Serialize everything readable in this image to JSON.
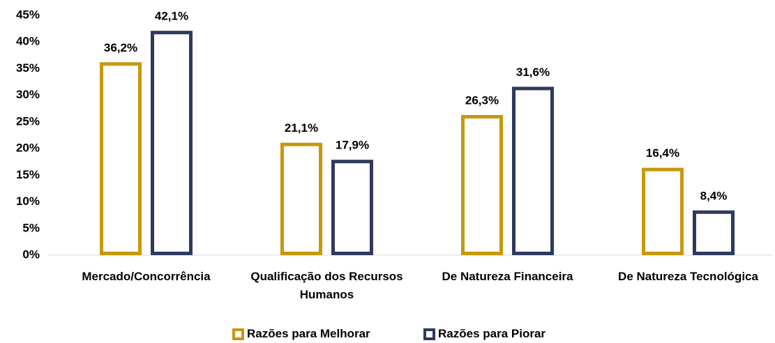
{
  "chart_data": {
    "type": "bar",
    "categories": [
      "Mercado/Concorrência",
      "Qualificação dos Recursos Humanos",
      "De Natureza Financeira",
      "De Natureza Tecnológica"
    ],
    "series": [
      {
        "name": "Razões para Melhorar",
        "color": "#c8980d",
        "values": [
          36.2,
          21.1,
          26.3,
          16.4
        ],
        "value_labels": [
          "36,2%",
          "21,1%",
          "26,3%",
          "16,4%"
        ]
      },
      {
        "name": "Razões para Piorar",
        "color": "#2e3a5e",
        "values": [
          42.1,
          17.9,
          31.6,
          8.4
        ],
        "value_labels": [
          "42,1%",
          "17,9%",
          "31,6%",
          "8,4%"
        ]
      }
    ],
    "ylim": [
      0,
      45
    ],
    "yticks": [
      {
        "value": 0,
        "label": "0%"
      },
      {
        "value": 5,
        "label": "5%"
      },
      {
        "value": 10,
        "label": "10%"
      },
      {
        "value": 15,
        "label": "15%"
      },
      {
        "value": 20,
        "label": "20%"
      },
      {
        "value": 25,
        "label": "25%"
      },
      {
        "value": 30,
        "label": "30%"
      },
      {
        "value": 35,
        "label": "35%"
      },
      {
        "value": 40,
        "label": "40%"
      },
      {
        "value": 45,
        "label": "45%"
      }
    ],
    "grid": false,
    "legend": "bottom"
  }
}
